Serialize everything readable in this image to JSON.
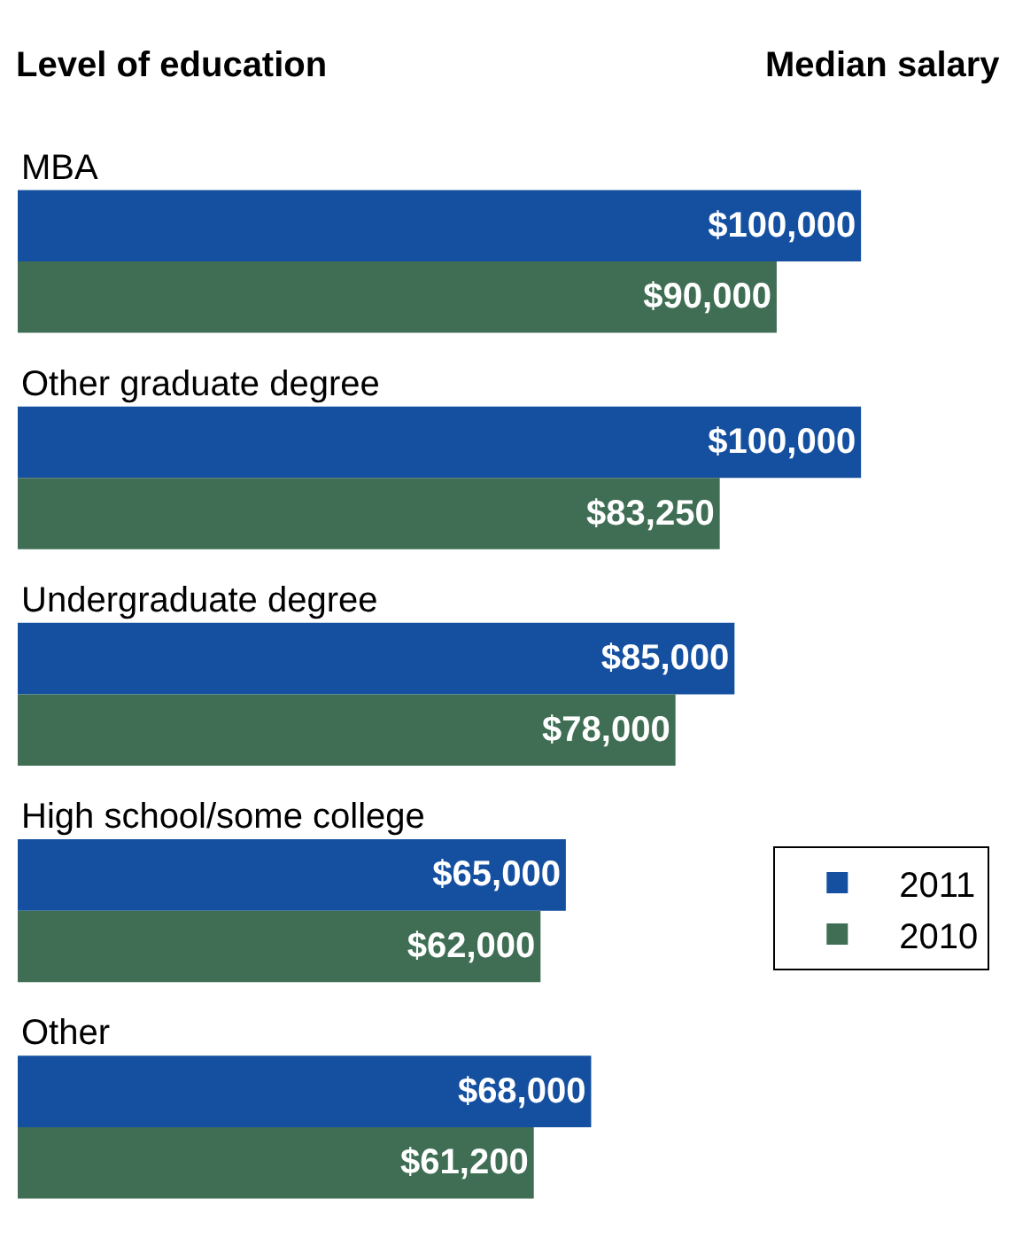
{
  "chart_data": {
    "type": "bar",
    "orientation": "horizontal",
    "ylabel": "Level of education",
    "xlabel": "Median salary",
    "categories": [
      "MBA",
      "Other graduate degree",
      "Undergraduate degree",
      "High school/some college",
      "Other"
    ],
    "series": [
      {
        "name": "2011",
        "color": "#1550a0",
        "values": [
          100000,
          100000,
          85000,
          65000,
          68000
        ],
        "value_labels": [
          "$100,000",
          "$100,000",
          "$85,000",
          "$65,000",
          "$68,000"
        ]
      },
      {
        "name": "2010",
        "color": "#3f6e54",
        "values": [
          90000,
          83250,
          78000,
          62000,
          61200
        ],
        "value_labels": [
          "$90,000",
          "$83,250",
          "$78,000",
          "$62,000",
          "$61,200"
        ]
      }
    ],
    "legend": "right",
    "grid": false,
    "tick_labels": false
  }
}
